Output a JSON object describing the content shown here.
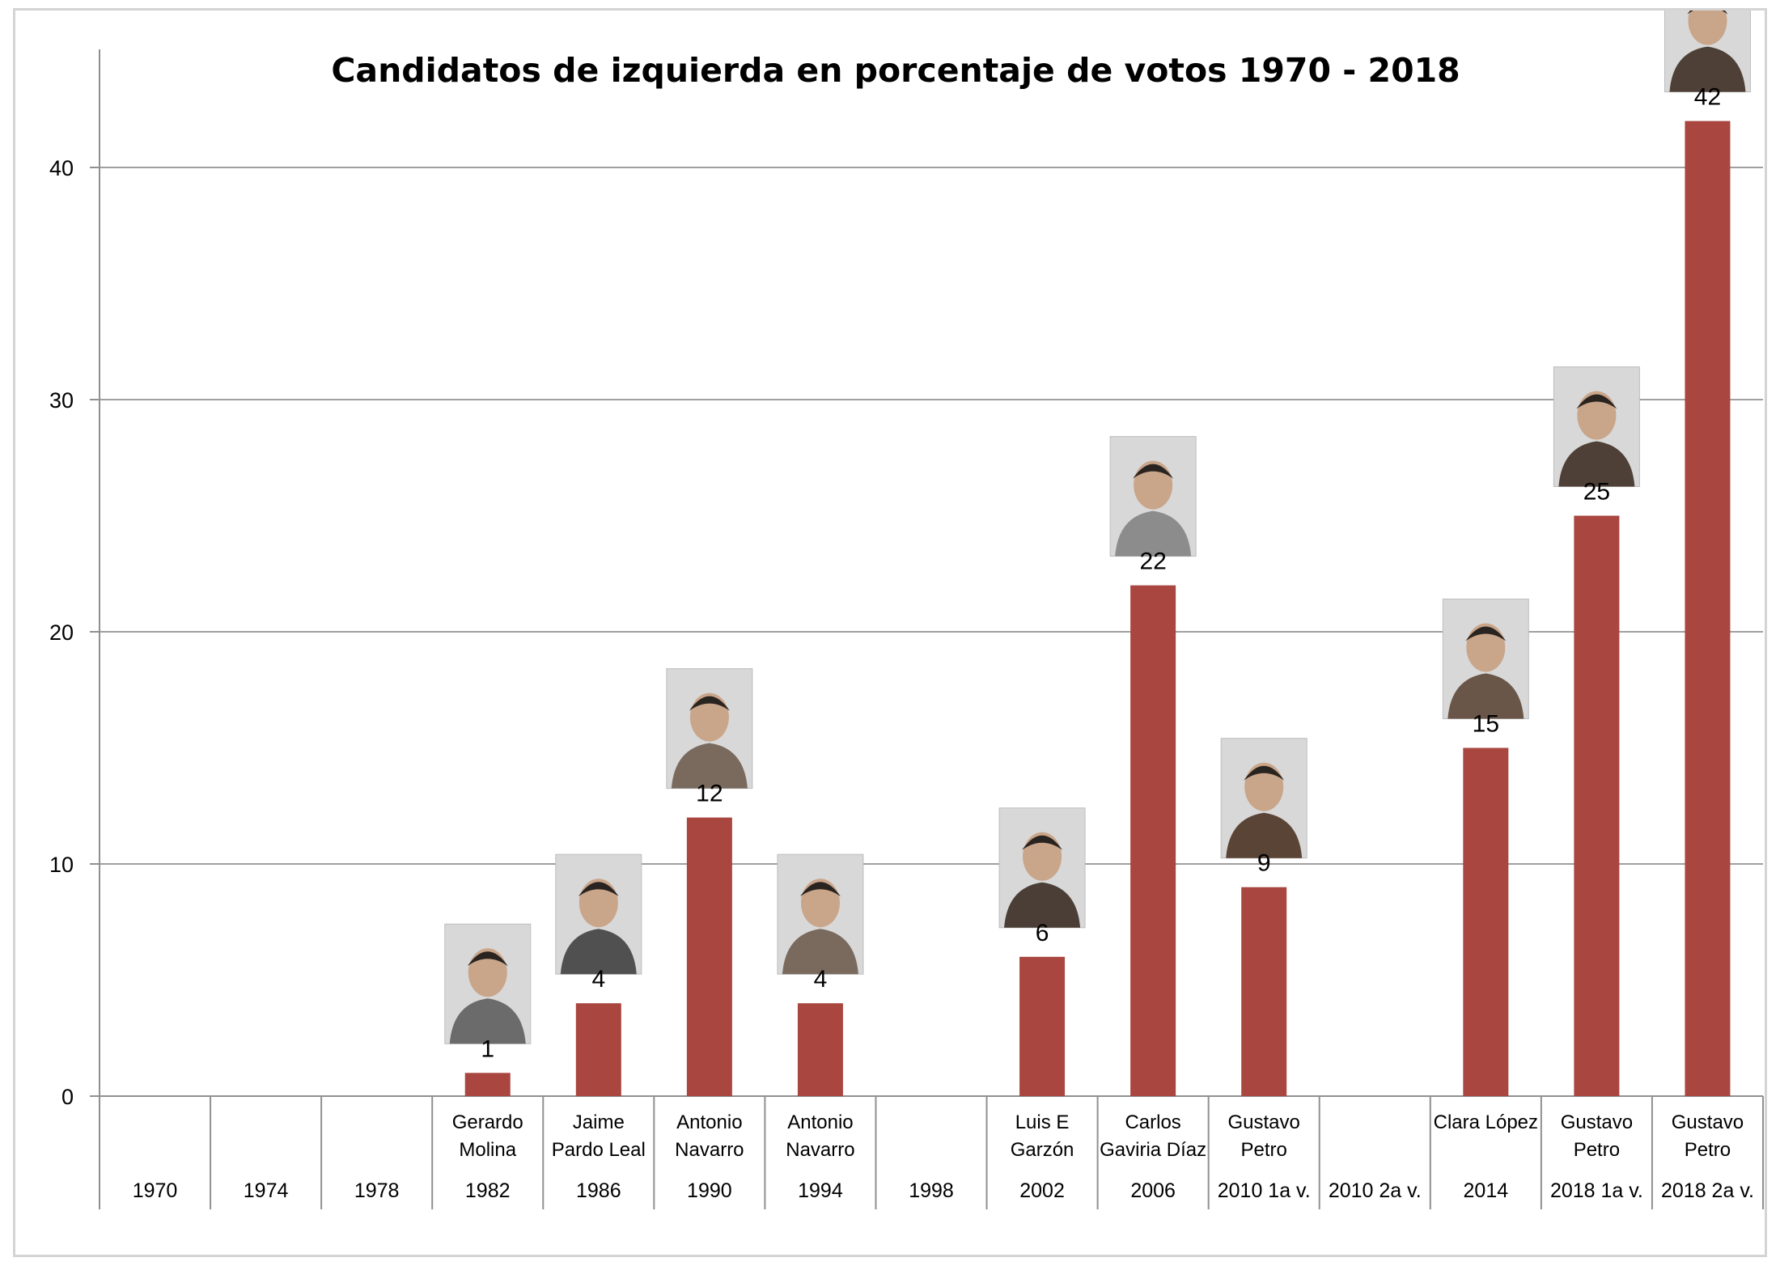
{
  "chart_data": {
    "type": "bar",
    "title": "Candidatos de izquierda en porcentaje de votos 1970 - 2018",
    "xlabel": "",
    "ylabel": "",
    "ylim": [
      0,
      45
    ],
    "yticks": [
      0,
      10,
      20,
      30,
      40
    ],
    "grid": true,
    "bar_color": "#a8463f",
    "categories": [
      {
        "year": "1970",
        "candidate": [],
        "value": null,
        "value_label": ""
      },
      {
        "year": "1974",
        "candidate": [],
        "value": null,
        "value_label": ""
      },
      {
        "year": "1978",
        "candidate": [],
        "value": null,
        "value_label": ""
      },
      {
        "year": "1982",
        "candidate": [
          "Gerardo",
          "Molina"
        ],
        "value": 1,
        "value_label": "1",
        "photo": "candidate-photo"
      },
      {
        "year": "1986",
        "candidate": [
          "Jaime",
          "Pardo Leal"
        ],
        "value": 4,
        "value_label": "4",
        "photo": "candidate-photo"
      },
      {
        "year": "1990",
        "candidate": [
          "Antonio",
          "Navarro"
        ],
        "value": 12,
        "value_label": "12",
        "photo": "candidate-photo"
      },
      {
        "year": "1994",
        "candidate": [
          "Antonio",
          "Navarro"
        ],
        "value": 4,
        "value_label": "4",
        "photo": "candidate-photo"
      },
      {
        "year": "1998",
        "candidate": [],
        "value": null,
        "value_label": ""
      },
      {
        "year": "2002",
        "candidate": [
          "Luis E",
          "Garzón"
        ],
        "value": 6,
        "value_label": "6",
        "photo": "candidate-photo"
      },
      {
        "year": "2006",
        "candidate": [
          "Carlos",
          "Gaviria Díaz"
        ],
        "value": 22,
        "value_label": "22",
        "photo": "candidate-photo"
      },
      {
        "year": "2010 1a v.",
        "candidate": [
          "Gustavo",
          "Petro"
        ],
        "value": 9,
        "value_label": "9",
        "photo": "candidate-photo"
      },
      {
        "year": "2010 2a v.",
        "candidate": [],
        "value": null,
        "value_label": ""
      },
      {
        "year": "2014",
        "candidate": [
          "Clara López"
        ],
        "value": 15,
        "value_label": "15",
        "photo": "candidate-photo"
      },
      {
        "year": "2018 1a v.",
        "candidate": [
          "Gustavo",
          "Petro"
        ],
        "value": 25,
        "value_label": "25",
        "photo": "candidate-photo"
      },
      {
        "year": "2018 2a v.",
        "candidate": [
          "Gustavo",
          "Petro"
        ],
        "value": 42,
        "value_label": "42",
        "photo": "candidate-photo"
      }
    ]
  }
}
